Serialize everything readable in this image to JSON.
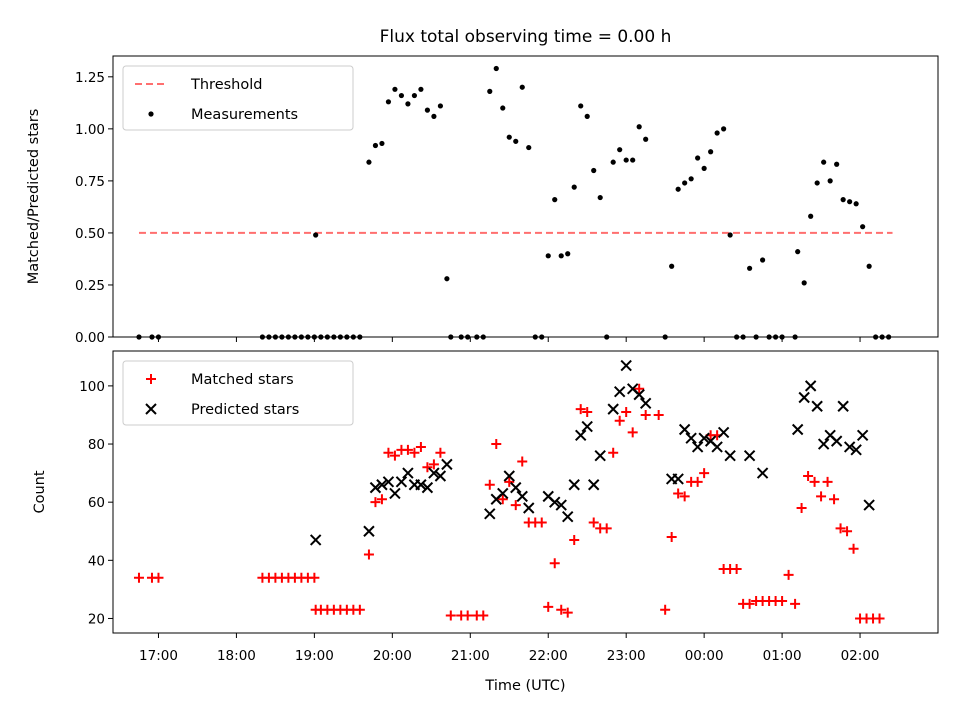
{
  "chart_data": [
    {
      "type": "scatter",
      "title": "Flux total observing time = 0.00 h",
      "ylabel": "Matched/Predicted stars",
      "xlabel": "",
      "ylim": [
        0,
        1.35
      ],
      "yticks": [
        "0.00",
        "0.25",
        "0.50",
        "0.75",
        "1.00",
        "1.25"
      ],
      "ytick_values": [
        0,
        0.25,
        0.5,
        0.75,
        1.0,
        1.25
      ],
      "legend": {
        "placement": "top-left",
        "entries": [
          "Threshold",
          "Measurements"
        ]
      },
      "threshold": {
        "name": "Threshold",
        "value": 0.5,
        "x_range": [
          "16:45",
          "02:25"
        ],
        "color": "#ff6f6f"
      },
      "series": [
        {
          "name": "Measurements",
          "color": "#000000",
          "points": [
            [
              "16:45",
              0
            ],
            [
              "16:55",
              0
            ],
            [
              "17:00",
              0
            ],
            [
              "18:20",
              0
            ],
            [
              "18:25",
              0
            ],
            [
              "18:30",
              0
            ],
            [
              "18:35",
              0
            ],
            [
              "18:40",
              0
            ],
            [
              "18:45",
              0
            ],
            [
              "18:50",
              0
            ],
            [
              "18:55",
              0
            ],
            [
              "19:00",
              0
            ],
            [
              "19:01",
              0.49
            ],
            [
              "19:05",
              0
            ],
            [
              "19:10",
              0
            ],
            [
              "19:15",
              0
            ],
            [
              "19:20",
              0
            ],
            [
              "19:25",
              0
            ],
            [
              "19:30",
              0
            ],
            [
              "19:35",
              0
            ],
            [
              "19:42",
              0.84
            ],
            [
              "19:47",
              0.92
            ],
            [
              "19:52",
              0.93
            ],
            [
              "19:57",
              1.13
            ],
            [
              "20:02",
              1.19
            ],
            [
              "20:07",
              1.16
            ],
            [
              "20:12",
              1.12
            ],
            [
              "20:17",
              1.16
            ],
            [
              "20:22",
              1.19
            ],
            [
              "20:27",
              1.09
            ],
            [
              "20:32",
              1.06
            ],
            [
              "20:37",
              1.11
            ],
            [
              "20:42",
              0.28
            ],
            [
              "20:45",
              0
            ],
            [
              "20:53",
              0
            ],
            [
              "20:58",
              0
            ],
            [
              "21:05",
              0
            ],
            [
              "21:10",
              0
            ],
            [
              "21:15",
              1.18
            ],
            [
              "21:20",
              1.29
            ],
            [
              "21:25",
              1.1
            ],
            [
              "21:30",
              0.96
            ],
            [
              "21:35",
              0.94
            ],
            [
              "21:40",
              1.2
            ],
            [
              "21:45",
              0.91
            ],
            [
              "21:50",
              0
            ],
            [
              "21:55",
              0
            ],
            [
              "22:00",
              0.39
            ],
            [
              "22:05",
              0.66
            ],
            [
              "22:10",
              0.39
            ],
            [
              "22:15",
              0.4
            ],
            [
              "22:20",
              0.72
            ],
            [
              "22:25",
              1.11
            ],
            [
              "22:30",
              1.06
            ],
            [
              "22:35",
              0.8
            ],
            [
              "22:40",
              0.67
            ],
            [
              "22:45",
              0
            ],
            [
              "22:50",
              0.84
            ],
            [
              "22:55",
              0.9
            ],
            [
              "23:00",
              0.85
            ],
            [
              "23:05",
              0.85
            ],
            [
              "23:10",
              1.01
            ],
            [
              "23:15",
              0.95
            ],
            [
              "23:30",
              0
            ],
            [
              "23:35",
              0.34
            ],
            [
              "23:40",
              0.71
            ],
            [
              "23:45",
              0.74
            ],
            [
              "23:50",
              0.76
            ],
            [
              "23:55",
              0.86
            ],
            [
              "00:00",
              0.81
            ],
            [
              "00:05",
              0.89
            ],
            [
              "00:10",
              0.98
            ],
            [
              "00:15",
              1.0
            ],
            [
              "00:20",
              0.49
            ],
            [
              "00:25",
              0
            ],
            [
              "00:30",
              0
            ],
            [
              "00:35",
              0.33
            ],
            [
              "00:40",
              0
            ],
            [
              "00:45",
              0.37
            ],
            [
              "00:50",
              0
            ],
            [
              "00:55",
              0
            ],
            [
              "01:00",
              0
            ],
            [
              "01:10",
              0
            ],
            [
              "01:12",
              0.41
            ],
            [
              "01:17",
              0.26
            ],
            [
              "01:22",
              0.58
            ],
            [
              "01:27",
              0.74
            ],
            [
              "01:32",
              0.84
            ],
            [
              "01:37",
              0.75
            ],
            [
              "01:42",
              0.83
            ],
            [
              "01:47",
              0.66
            ],
            [
              "01:52",
              0.65
            ],
            [
              "01:57",
              0.64
            ],
            [
              "02:02",
              0.53
            ],
            [
              "02:07",
              0.34
            ],
            [
              "02:12",
              0
            ],
            [
              "02:17",
              0
            ],
            [
              "02:22",
              0
            ]
          ]
        }
      ]
    },
    {
      "type": "scatter",
      "title": "",
      "ylabel": "Count",
      "xlabel": "Time (UTC)",
      "ylim": [
        15,
        112
      ],
      "yticks": [
        "20",
        "40",
        "60",
        "80",
        "100"
      ],
      "ytick_values": [
        20,
        40,
        60,
        80,
        100
      ],
      "xticks": [
        "17:00",
        "18:00",
        "19:00",
        "20:00",
        "21:00",
        "22:00",
        "23:00",
        "00:00",
        "01:00",
        "02:00"
      ],
      "xlim": [
        "16:25",
        "03:00"
      ],
      "legend": {
        "placement": "top-left",
        "entries": [
          "Matched stars",
          "Predicted stars"
        ]
      },
      "series": [
        {
          "name": "Matched stars",
          "marker": "+",
          "color": "#ff0000",
          "points": [
            [
              "16:45",
              34
            ],
            [
              "16:55",
              34
            ],
            [
              "17:00",
              34
            ],
            [
              "18:20",
              34
            ],
            [
              "18:25",
              34
            ],
            [
              "18:30",
              34
            ],
            [
              "18:35",
              34
            ],
            [
              "18:40",
              34
            ],
            [
              "18:45",
              34
            ],
            [
              "18:50",
              34
            ],
            [
              "18:55",
              34
            ],
            [
              "19:00",
              34
            ],
            [
              "19:01",
              23
            ],
            [
              "19:05",
              23
            ],
            [
              "19:10",
              23
            ],
            [
              "19:15",
              23
            ],
            [
              "19:20",
              23
            ],
            [
              "19:25",
              23
            ],
            [
              "19:30",
              23
            ],
            [
              "19:35",
              23
            ],
            [
              "19:42",
              42
            ],
            [
              "19:47",
              60
            ],
            [
              "19:52",
              61
            ],
            [
              "19:57",
              77
            ],
            [
              "20:02",
              76
            ],
            [
              "20:07",
              78
            ],
            [
              "20:12",
              78
            ],
            [
              "20:17",
              77
            ],
            [
              "20:22",
              79
            ],
            [
              "20:27",
              72
            ],
            [
              "20:32",
              73
            ],
            [
              "20:37",
              77
            ],
            [
              "20:45",
              21
            ],
            [
              "20:53",
              21
            ],
            [
              "20:58",
              21
            ],
            [
              "21:05",
              21
            ],
            [
              "21:10",
              21
            ],
            [
              "21:15",
              66
            ],
            [
              "21:20",
              80
            ],
            [
              "21:25",
              61
            ],
            [
              "21:30",
              67
            ],
            [
              "21:35",
              59
            ],
            [
              "21:40",
              74
            ],
            [
              "21:45",
              53
            ],
            [
              "21:50",
              53
            ],
            [
              "21:55",
              53
            ],
            [
              "22:00",
              24
            ],
            [
              "22:05",
              39
            ],
            [
              "22:10",
              23
            ],
            [
              "22:15",
              22
            ],
            [
              "22:20",
              47
            ],
            [
              "22:25",
              92
            ],
            [
              "22:30",
              91
            ],
            [
              "22:35",
              53
            ],
            [
              "22:40",
              51
            ],
            [
              "22:45",
              51
            ],
            [
              "22:50",
              77
            ],
            [
              "22:55",
              88
            ],
            [
              "23:00",
              91
            ],
            [
              "23:05",
              84
            ],
            [
              "23:10",
              99
            ],
            [
              "23:15",
              90
            ],
            [
              "23:25",
              90
            ],
            [
              "23:30",
              23
            ],
            [
              "23:35",
              48
            ],
            [
              "23:40",
              63
            ],
            [
              "23:45",
              62
            ],
            [
              "23:50",
              67
            ],
            [
              "23:55",
              67
            ],
            [
              "00:00",
              70
            ],
            [
              "00:05",
              83
            ],
            [
              "00:10",
              83
            ],
            [
              "00:15",
              37
            ],
            [
              "00:20",
              37
            ],
            [
              "00:25",
              37
            ],
            [
              "00:30",
              25
            ],
            [
              "00:35",
              25
            ],
            [
              "00:40",
              26
            ],
            [
              "00:45",
              26
            ],
            [
              "00:50",
              26
            ],
            [
              "00:55",
              26
            ],
            [
              "01:00",
              26
            ],
            [
              "01:05",
              35
            ],
            [
              "01:10",
              25
            ],
            [
              "01:15",
              58
            ],
            [
              "01:20",
              69
            ],
            [
              "01:25",
              67
            ],
            [
              "01:30",
              62
            ],
            [
              "01:35",
              67
            ],
            [
              "01:40",
              61
            ],
            [
              "01:45",
              51
            ],
            [
              "01:50",
              50
            ],
            [
              "01:55",
              44
            ],
            [
              "02:00",
              20
            ],
            [
              "02:05",
              20
            ],
            [
              "02:10",
              20
            ],
            [
              "02:15",
              20
            ]
          ]
        },
        {
          "name": "Predicted stars",
          "marker": "x",
          "color": "#000000",
          "points": [
            [
              "19:01",
              47
            ],
            [
              "19:42",
              50
            ],
            [
              "19:47",
              65
            ],
            [
              "19:52",
              66
            ],
            [
              "19:57",
              67
            ],
            [
              "20:02",
              63
            ],
            [
              "20:07",
              67
            ],
            [
              "20:12",
              70
            ],
            [
              "20:17",
              66
            ],
            [
              "20:22",
              66
            ],
            [
              "20:27",
              65
            ],
            [
              "20:32",
              70
            ],
            [
              "20:37",
              69
            ],
            [
              "20:42",
              73
            ],
            [
              "21:15",
              56
            ],
            [
              "21:20",
              61
            ],
            [
              "21:25",
              63
            ],
            [
              "21:30",
              69
            ],
            [
              "21:35",
              65
            ],
            [
              "21:40",
              62
            ],
            [
              "21:45",
              58
            ],
            [
              "22:00",
              62
            ],
            [
              "22:05",
              60
            ],
            [
              "22:10",
              59
            ],
            [
              "22:15",
              55
            ],
            [
              "22:20",
              66
            ],
            [
              "22:25",
              83
            ],
            [
              "22:30",
              86
            ],
            [
              "22:35",
              66
            ],
            [
              "22:40",
              76
            ],
            [
              "22:50",
              92
            ],
            [
              "22:55",
              98
            ],
            [
              "23:00",
              107
            ],
            [
              "23:05",
              99
            ],
            [
              "23:10",
              97
            ],
            [
              "23:15",
              94
            ],
            [
              "23:35",
              68
            ],
            [
              "23:40",
              68
            ],
            [
              "23:45",
              85
            ],
            [
              "23:50",
              82
            ],
            [
              "23:55",
              79
            ],
            [
              "00:00",
              82
            ],
            [
              "00:05",
              81
            ],
            [
              "00:10",
              79
            ],
            [
              "00:15",
              84
            ],
            [
              "00:20",
              76
            ],
            [
              "00:35",
              76
            ],
            [
              "00:45",
              70
            ],
            [
              "01:12",
              85
            ],
            [
              "01:17",
              96
            ],
            [
              "01:22",
              100
            ],
            [
              "01:27",
              93
            ],
            [
              "01:32",
              80
            ],
            [
              "01:37",
              83
            ],
            [
              "01:42",
              81
            ],
            [
              "01:47",
              93
            ],
            [
              "01:52",
              79
            ],
            [
              "01:57",
              78
            ],
            [
              "02:02",
              83
            ],
            [
              "02:07",
              59
            ]
          ]
        }
      ]
    }
  ]
}
